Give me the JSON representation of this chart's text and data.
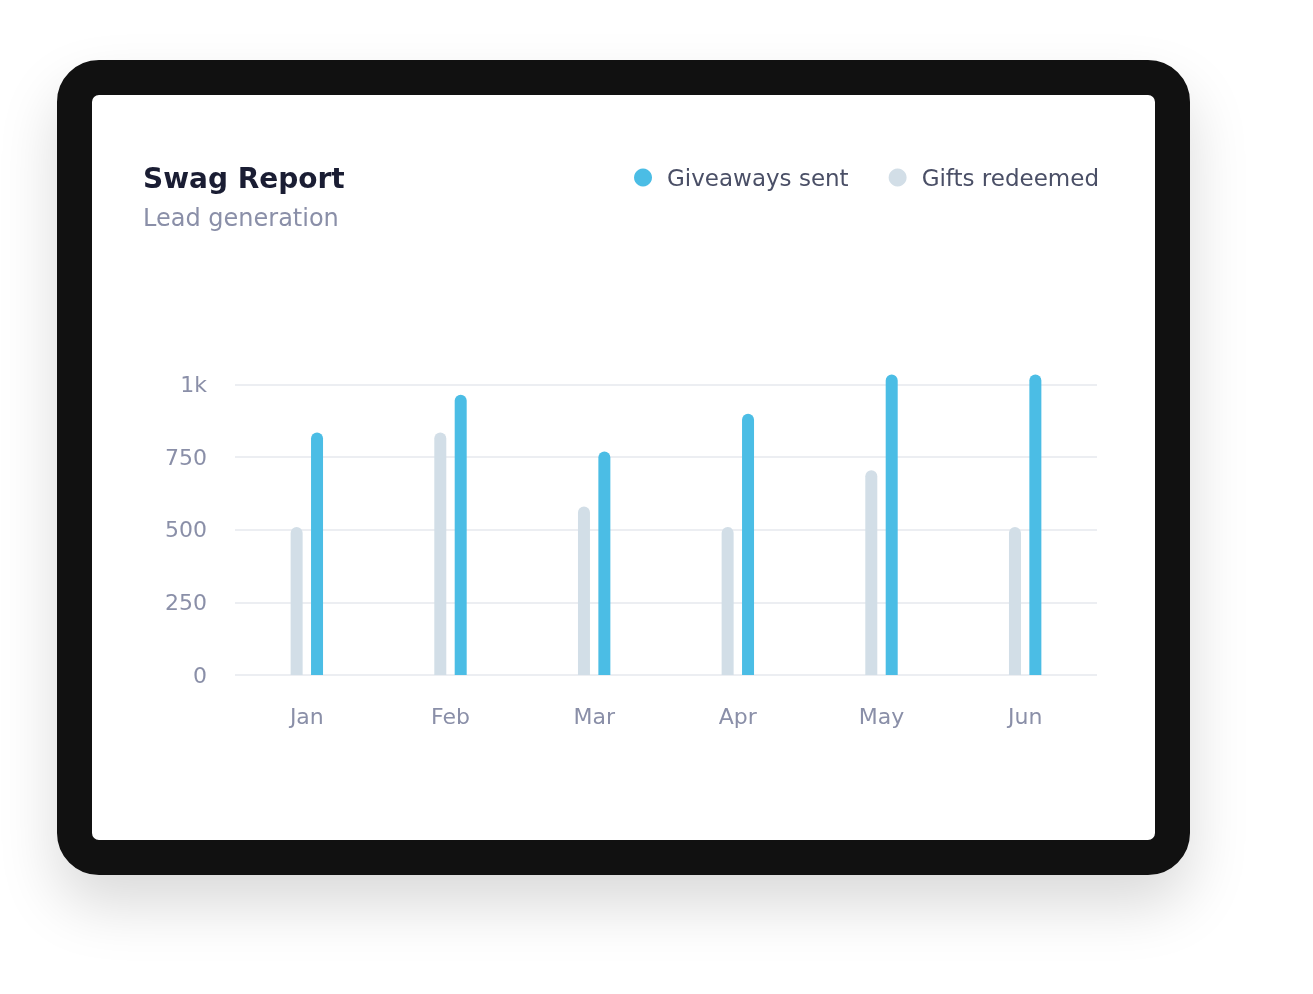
{
  "chart_data": {
    "type": "bar",
    "title": "Swag Report",
    "subtitle": "Lead generation",
    "categories": [
      "Jan",
      "Feb",
      "Mar",
      "Apr",
      "May",
      "Jun"
    ],
    "series": [
      {
        "name": "Gifts redeemed",
        "color": "#d2dee7",
        "values": [
          510,
          835,
          580,
          510,
          705,
          510
        ]
      },
      {
        "name": "Giveaways sent",
        "color": "#4bbde5",
        "values": [
          835,
          965,
          770,
          900,
          1035,
          1035
        ]
      }
    ],
    "ylim": [
      0,
      1040
    ],
    "yticks": [
      0,
      250,
      500,
      750,
      {
        "value": 1000,
        "label": "1k"
      }
    ],
    "grid": "y",
    "legend": "top right"
  }
}
